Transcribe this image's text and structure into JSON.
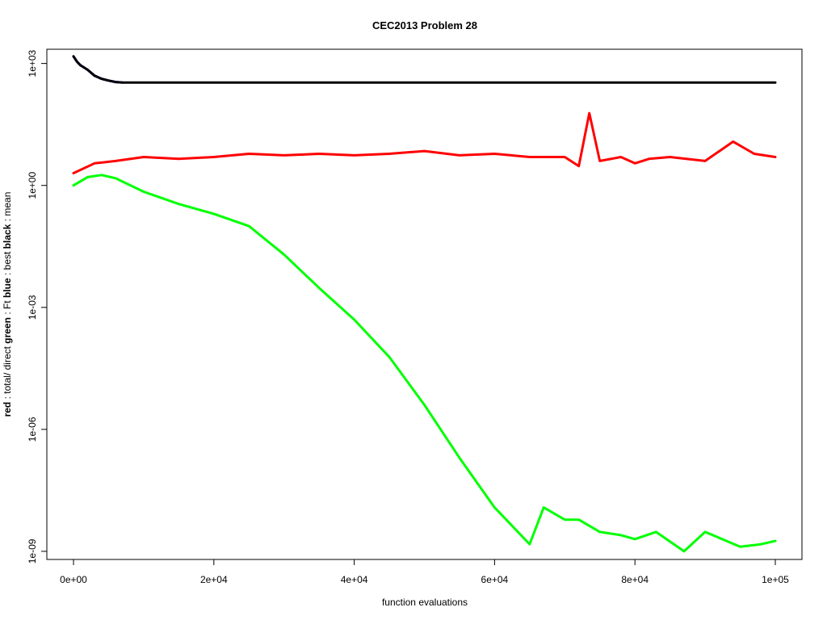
{
  "chart_data": {
    "type": "line",
    "title": "CEC2013 Problem  28",
    "xlabel": "function evaluations",
    "ylabel_parts": [
      {
        "text": "red",
        "bold": true
      },
      {
        "text": " : total/ direct ",
        "bold": false
      },
      {
        "text": "green",
        "bold": true
      },
      {
        "text": " : Ft ",
        "bold": false
      },
      {
        "text": "blue",
        "bold": true
      },
      {
        "text": " : best ",
        "bold": false
      },
      {
        "text": "black",
        "bold": true
      },
      {
        "text": " : mean",
        "bold": false
      }
    ],
    "xlim": [
      -3800,
      103800
    ],
    "ylim_log10": [
      -9.2,
      3.35
    ],
    "y_scale": "log",
    "grid": false,
    "x_ticks": [
      {
        "value": 0,
        "label": "0e+00"
      },
      {
        "value": 20000,
        "label": "2e+04"
      },
      {
        "value": 40000,
        "label": "4e+04"
      },
      {
        "value": 60000,
        "label": "6e+04"
      },
      {
        "value": 80000,
        "label": "8e+04"
      },
      {
        "value": 100000,
        "label": "1e+05"
      }
    ],
    "y_ticks": [
      {
        "log10": 3,
        "label": "1e+03"
      },
      {
        "log10": 0,
        "label": "1e+00"
      },
      {
        "log10": -3,
        "label": "1e-03"
      },
      {
        "log10": -6,
        "label": "1e-06"
      },
      {
        "log10": -9,
        "label": "1e-09"
      }
    ],
    "series": [
      {
        "color": "#ff0000",
        "x": [
          0,
          3000,
          6000,
          10000,
          15000,
          20000,
          25000,
          30000,
          35000,
          40000,
          45000,
          50000,
          55000,
          60000,
          65000,
          70000,
          72000,
          73500,
          75000,
          78000,
          80000,
          82000,
          85000,
          90000,
          94000,
          97000,
          100000
        ],
        "y": [
          2,
          3.5,
          4,
          5,
          4.5,
          5,
          6,
          5.5,
          6,
          5.5,
          6,
          7,
          5.5,
          6,
          5,
          5,
          3,
          60,
          4,
          5,
          3.5,
          4.5,
          5,
          4,
          12,
          6,
          5
        ]
      },
      {
        "color": "#00ff00",
        "x": [
          0,
          2000,
          4000,
          6000,
          10000,
          15000,
          20000,
          25000,
          30000,
          35000,
          40000,
          45000,
          50000,
          55000,
          60000,
          65000,
          67000,
          70000,
          72000,
          75000,
          78000,
          80000,
          83000,
          87000,
          90000,
          95000,
          98000,
          100000
        ],
        "y": [
          1,
          1.6,
          1.8,
          1.5,
          0.7,
          0.35,
          0.2,
          0.1,
          0.02,
          0.003,
          0.0005,
          6e-05,
          4e-06,
          2e-07,
          1.2e-08,
          1.5e-09,
          1.2e-08,
          6e-09,
          6e-09,
          3e-09,
          2.5e-09,
          2e-09,
          3e-09,
          1e-09,
          3e-09,
          1.3e-09,
          1.5e-09,
          1.8e-09
        ]
      },
      {
        "color": "#0000ff",
        "x": [
          0,
          500,
          1000,
          2000,
          3000,
          4000,
          5000,
          6000,
          7000
        ],
        "y": [
          1500,
          1100,
          900,
          700,
          500,
          420,
          380,
          350,
          340
        ]
      },
      {
        "color": "#000000",
        "x": [
          0,
          500,
          1000,
          2000,
          3000,
          4000,
          5000,
          6000,
          7000,
          100000
        ],
        "y": [
          1500,
          1100,
          900,
          700,
          500,
          420,
          380,
          350,
          340,
          340
        ]
      }
    ]
  }
}
